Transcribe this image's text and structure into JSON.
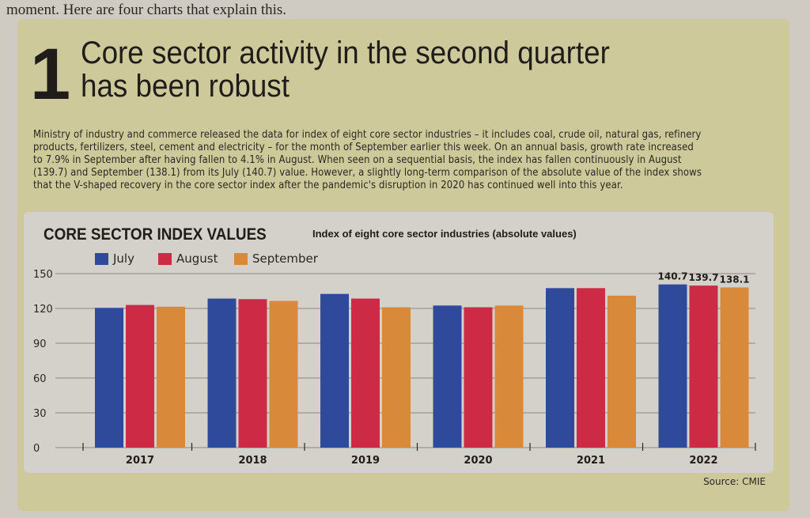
{
  "intro_text": "moment. Here are four charts that explain this.",
  "panel": {
    "number": "1",
    "headline_line1": "Core sector activity in the second quarter",
    "headline_line2": "has been robust",
    "body": "Ministry of industry and commerce released the data for index of eight core sector industries – it includes coal, crude oil, natural gas, refinery products, fertilizers, steel, cement and electricity – for the month of September earlier this week. On an annual basis, growth rate increased to 7.9% in September after having fallen to 4.1% in August. When seen on a sequential basis, the index has fallen continuously in August (139.7) and September (138.1) from its July (140.7) value. However, a slightly long-term comparison of the absolute value of the index shows that the V-shaped recovery in the core sector index after the pandemic's disruption in 2020 has continued well into this year.",
    "source": "Source: CMIE"
  },
  "chart_data": {
    "type": "bar",
    "title": "CORE SECTOR INDEX VALUES",
    "subtitle": "Index of eight core sector industries (absolute values)",
    "xlabel": "",
    "ylabel": "",
    "categories": [
      "2017",
      "2018",
      "2019",
      "2020",
      "2021",
      "2022"
    ],
    "series": [
      {
        "name": "July",
        "color": "#2f4a9a",
        "values": [
          120.5,
          128.5,
          132.5,
          122.5,
          137.5,
          140.7
        ]
      },
      {
        "name": "August",
        "color": "#cc2a45",
        "values": [
          123.0,
          128.0,
          128.5,
          121.0,
          137.5,
          139.7
        ]
      },
      {
        "name": "September",
        "color": "#d88a3a",
        "values": [
          121.5,
          126.5,
          121.0,
          122.5,
          131.0,
          138.1
        ]
      }
    ],
    "data_labels": {
      "2022": [
        "140.7",
        "139.7",
        "138.1"
      ]
    },
    "yticks": [
      0,
      30,
      60,
      90,
      120,
      150
    ],
    "ylim": [
      0,
      150
    ],
    "grid": true,
    "legend_position": "top-left"
  }
}
